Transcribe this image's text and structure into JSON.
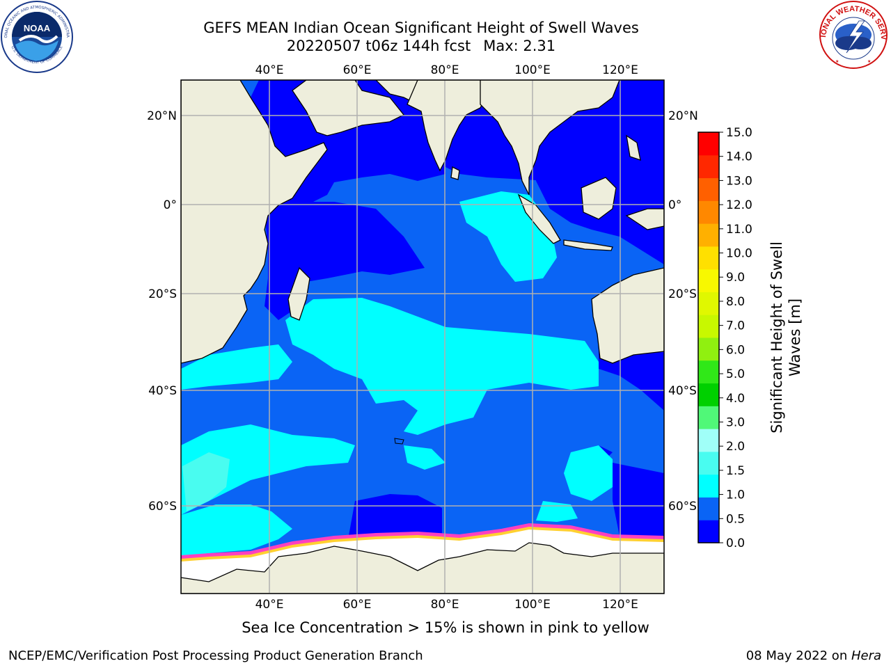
{
  "title": {
    "line1": "GEFS MEAN Indian Ocean Significant Height of Swell Waves",
    "run": "20220507 t06z 144h fcst",
    "max": "Max: 2.31"
  },
  "logos": {
    "left": {
      "icon": "noaa-logo",
      "text": "NOAA",
      "ring_text": "NATIONAL OCEANIC AND ATMOSPHERIC ADMINISTRATION · U.S. DEPARTMENT OF COMMERCE"
    },
    "right": {
      "icon": "national-weather-service-logo",
      "ring_text": "NATIONAL WEATHER SERVICE"
    }
  },
  "map": {
    "lon_labels": [
      "40°E",
      "60°E",
      "80°E",
      "100°E",
      "120°E"
    ],
    "lat_labels": [
      "20°N",
      "0°",
      "20°S",
      "40°S",
      "60°S"
    ],
    "colors": {
      "land": "#eeeedc",
      "band_0_0_5": "#0000ff",
      "band_0_5_1_0": "#0a64f5",
      "band_1_0_1_5": "#00ffff",
      "band_1_5_2_0": "#49fcf0",
      "sea_ice_white": "#ffffff",
      "sea_ice_pink": "#ff40c0",
      "sea_ice_yellow": "#ffd030"
    }
  },
  "colorbar": {
    "label_line1": "Significant Height of Swell",
    "label_line2": "Waves [m]",
    "ticks": [
      "15.0",
      "14.0",
      "13.0",
      "12.0",
      "11.0",
      "10.0",
      "9.0",
      "8.0",
      "7.0",
      "6.0",
      "5.0",
      "4.0",
      "3.0",
      "2.0",
      "1.5",
      "1.0",
      "0.5",
      "0.0"
    ],
    "colors_bottom_to_top": [
      "#0000ff",
      "#0a64f5",
      "#00ffff",
      "#49fcf0",
      "#a0fff8",
      "#50f878",
      "#00d000",
      "#30e818",
      "#90f010",
      "#c8f800",
      "#e0f800",
      "#f8f800",
      "#ffe000",
      "#ffb000",
      "#ff8800",
      "#ff6000",
      "#ff2800",
      "#ff0000"
    ]
  },
  "caption": "Sea Ice Concentration > 15% is shown in pink to yellow",
  "footer": {
    "left": "NCEP/EMC/Verification Post Processing Product Generation Branch",
    "right_date": "08 May 2022 on ",
    "right_host": "Hera"
  }
}
